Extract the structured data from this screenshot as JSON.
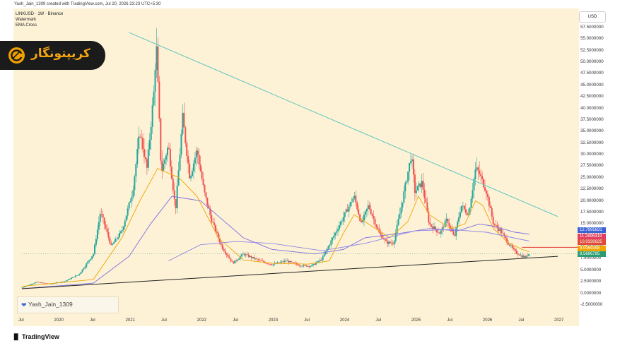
{
  "header": {
    "credit": "Yash_Jain_1309 created with TradingView.com, Jul 20, 2026 23:23 UTC+5:30"
  },
  "legend": {
    "symbol": "LINKUSD · 1W · Binance",
    "watermark": "Watermark",
    "ema": "EMA Cross"
  },
  "price_axis": {
    "currency": "USD"
  },
  "logo": {
    "text": "کریپتونگار",
    "badge_icon": "crypto-c-icon"
  },
  "watermark_box": {
    "heart_icon": "heart-icon",
    "author": "Yash_Jain_1309"
  },
  "footer": {
    "brand": "TradingView",
    "brand_icon": "tv-logo-icon"
  },
  "price_labels": [
    {
      "text": "12.7995831",
      "color": "#3b63d6"
    },
    {
      "text": "11.2895319",
      "color": "#e0405f"
    },
    {
      "text": "10.0330825",
      "color": "#e04a3a"
    },
    {
      "text": "9.0069398",
      "color": "#f0a500"
    },
    {
      "text": "8.5696785",
      "color": "#2a9d73"
    }
  ],
  "chart_data": {
    "type": "candlestick",
    "symbol": "LINKUSD",
    "interval": "1W",
    "exchange": "Binance",
    "y_ticks": [
      "57.5000000",
      "55.0000000",
      "52.5000000",
      "50.0000000",
      "47.5000000",
      "45.0000000",
      "42.5000000",
      "40.0000000",
      "37.5000000",
      "35.0000000",
      "32.5000000",
      "30.0000000",
      "27.5000000",
      "25.0000000",
      "22.5000000",
      "20.0000000",
      "17.5000000",
      "15.0000000",
      "12.5000000",
      "10.0000000",
      "7.5000000",
      "5.0000000",
      "2.5000000",
      "0.0000000",
      "-2.5000000"
    ],
    "x_ticks": [
      "Jul",
      "2020",
      "Jul",
      "2021",
      "Jul",
      "2022",
      "Jul",
      "2023",
      "Jul",
      "2024",
      "Jul",
      "2025",
      "Jul",
      "2026",
      "Jul",
      "2027"
    ],
    "ylim": [
      -2.5,
      57.5
    ],
    "trendlines": [
      {
        "name": "descending-resistance",
        "color": "#5fc6c0",
        "points": [
          [
            2021.0,
            56.4
          ],
          [
            2027.0,
            16.6
          ]
        ]
      },
      {
        "name": "ascending-support",
        "color": "#222222",
        "points": [
          [
            2019.5,
            1.0
          ],
          [
            2027.0,
            8.0
          ]
        ]
      }
    ],
    "horizontal_line": {
      "value": 9.95,
      "color": "#e53935"
    },
    "emas": [
      {
        "name": "fast",
        "color": "#f0a500",
        "points": [
          [
            2019.5,
            1.5
          ],
          [
            2020.5,
            3
          ],
          [
            2020.9,
            12
          ],
          [
            2021.15,
            20
          ],
          [
            2021.4,
            27
          ],
          [
            2021.7,
            25
          ],
          [
            2021.95,
            21
          ],
          [
            2022.25,
            12
          ],
          [
            2022.6,
            7.2
          ],
          [
            2023.0,
            6.5
          ],
          [
            2023.5,
            6.3
          ],
          [
            2023.8,
            7
          ],
          [
            2024.0,
            13
          ],
          [
            2024.15,
            17
          ],
          [
            2024.35,
            15
          ],
          [
            2024.65,
            12
          ],
          [
            2024.9,
            15.5
          ],
          [
            2025.05,
            21
          ],
          [
            2025.2,
            17
          ],
          [
            2025.5,
            14
          ],
          [
            2025.7,
            15
          ],
          [
            2025.85,
            20
          ],
          [
            2025.95,
            19
          ],
          [
            2026.1,
            14
          ],
          [
            2026.3,
            11
          ],
          [
            2026.5,
            9.5
          ],
          [
            2026.6,
            9
          ]
        ]
      },
      {
        "name": "slow",
        "color": "#7a6be0",
        "points": [
          [
            2019.5,
            1
          ],
          [
            2020.5,
            2.2
          ],
          [
            2021.0,
            8
          ],
          [
            2021.3,
            15
          ],
          [
            2021.6,
            21
          ],
          [
            2022.0,
            20
          ],
          [
            2022.3,
            16
          ],
          [
            2022.6,
            12
          ],
          [
            2023.0,
            9.5
          ],
          [
            2023.6,
            8.5
          ],
          [
            2024.0,
            9.5
          ],
          [
            2024.3,
            12
          ],
          [
            2024.8,
            13
          ],
          [
            2025.2,
            14
          ],
          [
            2025.6,
            13.5
          ],
          [
            2025.9,
            15
          ],
          [
            2026.1,
            14.5
          ],
          [
            2026.4,
            13.2
          ],
          [
            2026.6,
            12.8
          ]
        ]
      },
      {
        "name": "long",
        "color": "#8e86e6",
        "points": [
          [
            2021.55,
            7.0
          ],
          [
            2022.0,
            10.5
          ],
          [
            2022.5,
            11.2
          ],
          [
            2023.0,
            10.8
          ],
          [
            2023.7,
            9.2
          ],
          [
            2024.3,
            10.8
          ],
          [
            2025.0,
            13.5
          ],
          [
            2025.5,
            13.8
          ],
          [
            2026.0,
            13.2
          ],
          [
            2026.6,
            11.3
          ]
        ]
      }
    ],
    "price_path": [
      [
        2019.5,
        1.2
      ],
      [
        2019.7,
        2.4
      ],
      [
        2019.9,
        2.0
      ],
      [
        2020.1,
        2.6
      ],
      [
        2020.3,
        4.1
      ],
      [
        2020.5,
        8.5
      ],
      [
        2020.6,
        17.6
      ],
      [
        2020.75,
        10.2
      ],
      [
        2020.9,
        13.5
      ],
      [
        2021.05,
        22
      ],
      [
        2021.15,
        35
      ],
      [
        2021.25,
        27
      ],
      [
        2021.35,
        44
      ],
      [
        2021.38,
        54.5
      ],
      [
        2021.45,
        26
      ],
      [
        2021.55,
        32
      ],
      [
        2021.65,
        18
      ],
      [
        2021.75,
        38
      ],
      [
        2021.85,
        25
      ],
      [
        2021.95,
        31
      ],
      [
        2022.05,
        22
      ],
      [
        2022.15,
        16
      ],
      [
        2022.3,
        10
      ],
      [
        2022.45,
        6.5
      ],
      [
        2022.6,
        8.5
      ],
      [
        2022.8,
        7.2
      ],
      [
        2023.0,
        6.2
      ],
      [
        2023.2,
        7.0
      ],
      [
        2023.4,
        6.0
      ],
      [
        2023.55,
        5.9
      ],
      [
        2023.7,
        7.4
      ],
      [
        2023.85,
        12
      ],
      [
        2023.95,
        15
      ],
      [
        2024.05,
        18
      ],
      [
        2024.15,
        21
      ],
      [
        2024.25,
        15
      ],
      [
        2024.35,
        19
      ],
      [
        2024.5,
        13
      ],
      [
        2024.6,
        11
      ],
      [
        2024.7,
        10.8
      ],
      [
        2024.8,
        18
      ],
      [
        2024.9,
        26
      ],
      [
        2024.95,
        30
      ],
      [
        2025.0,
        22
      ],
      [
        2025.1,
        24
      ],
      [
        2025.2,
        15
      ],
      [
        2025.35,
        13
      ],
      [
        2025.45,
        16
      ],
      [
        2025.55,
        12
      ],
      [
        2025.65,
        19
      ],
      [
        2025.75,
        17
      ],
      [
        2025.85,
        27
      ],
      [
        2025.9,
        26
      ],
      [
        2026.0,
        22
      ],
      [
        2026.1,
        15
      ],
      [
        2026.2,
        13.5
      ],
      [
        2026.3,
        11
      ],
      [
        2026.4,
        9.0
      ],
      [
        2026.5,
        8.0
      ],
      [
        2026.55,
        7.8
      ],
      [
        2026.6,
        8.6
      ]
    ]
  }
}
